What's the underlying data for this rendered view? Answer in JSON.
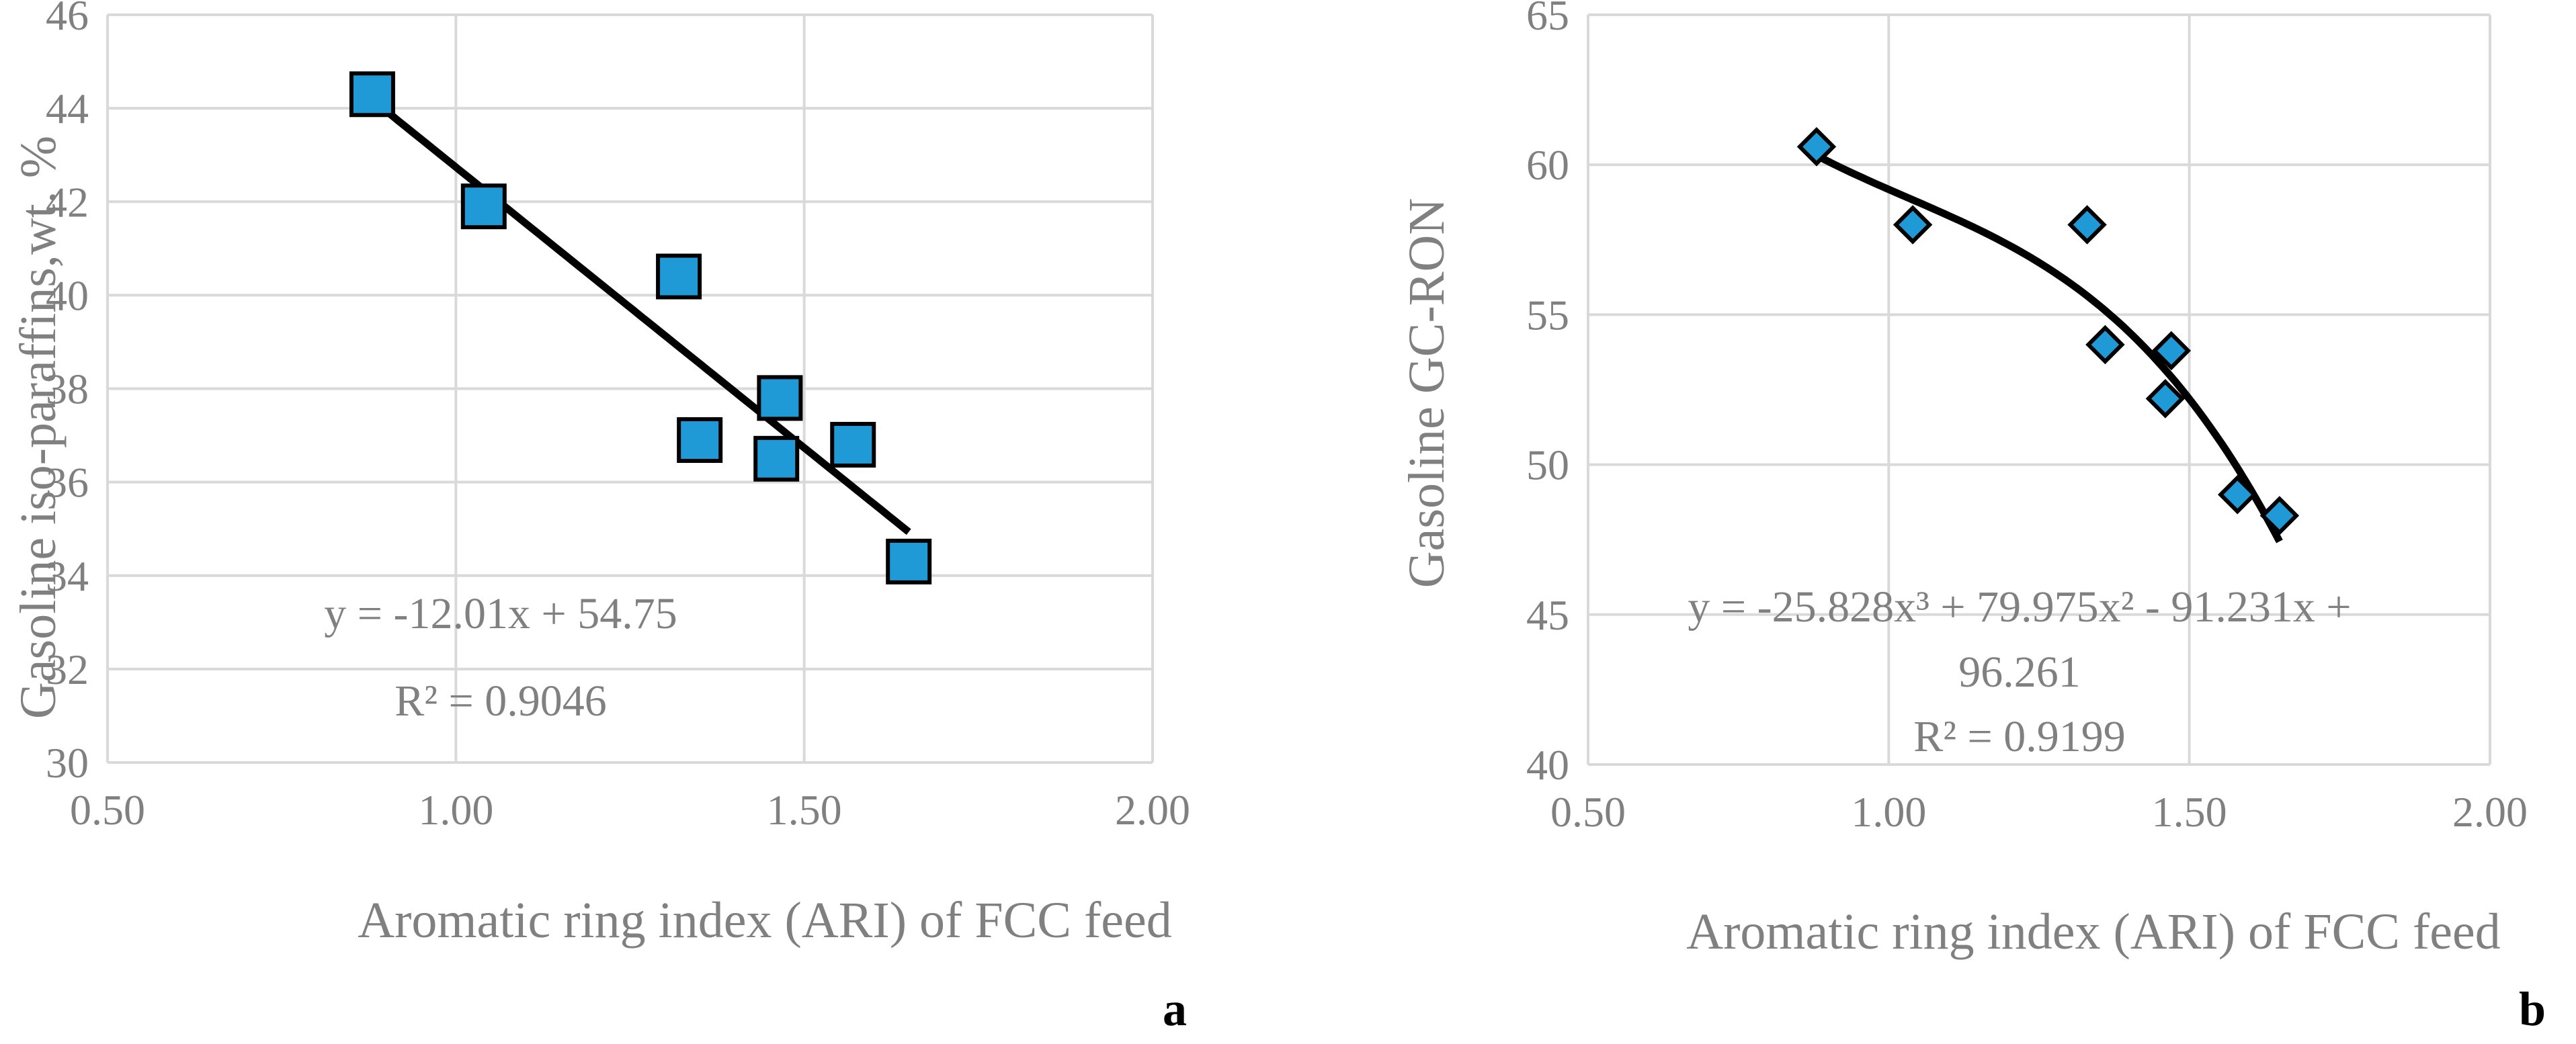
{
  "chart_data": [
    {
      "type": "scatter",
      "panel_label": "a",
      "title": "",
      "xlabel": "Aromatic ring index (ARI) of FCC feed",
      "ylabel": "Gasoline iso-paraffins,wt. %",
      "xlim": [
        0.5,
        2.0
      ],
      "ylim": [
        30,
        46
      ],
      "x_ticks": [
        0.5,
        1.0,
        1.5,
        2.0
      ],
      "x_tick_labels": [
        "0.50",
        "1.00",
        "1.50",
        "2.00"
      ],
      "y_ticks": [
        30,
        32,
        34,
        36,
        38,
        40,
        42,
        44,
        46
      ],
      "y_tick_labels": [
        "30",
        "32",
        "34",
        "36",
        "38",
        "40",
        "42",
        "44",
        "46"
      ],
      "grid": true,
      "marker": "square",
      "marker_color": "#1f9ad6",
      "series": [
        {
          "name": "data",
          "x": [
            0.88,
            1.04,
            1.32,
            1.35,
            1.46,
            1.465,
            1.57,
            1.65
          ],
          "y": [
            44.3,
            41.9,
            40.4,
            36.9,
            36.5,
            37.8,
            36.8,
            34.3
          ]
        }
      ],
      "trendline": {
        "type": "linear",
        "coefficients": [
          -12.01,
          54.75
        ],
        "x_range": [
          0.88,
          1.65
        ],
        "equation_label": "y = -12.01x + 54.75",
        "r2_label": "R² = 0.9046"
      }
    },
    {
      "type": "scatter",
      "panel_label": "b",
      "title": "",
      "xlabel": "Aromatic ring index (ARI) of FCC feed",
      "ylabel": "Gasoline GC-RON",
      "xlim": [
        0.5,
        2.0
      ],
      "ylim": [
        40,
        65
      ],
      "x_ticks": [
        0.5,
        1.0,
        1.5,
        2.0
      ],
      "x_tick_labels": [
        "0.50",
        "1.00",
        "1.50",
        "2.00"
      ],
      "y_ticks": [
        40,
        45,
        50,
        55,
        60,
        65
      ],
      "y_tick_labels": [
        "40",
        "45",
        "50",
        "55",
        "60",
        "65"
      ],
      "grid": true,
      "marker": "diamond",
      "marker_color": "#1f9ad6",
      "series": [
        {
          "name": "data",
          "x": [
            0.88,
            1.04,
            1.33,
            1.36,
            1.46,
            1.47,
            1.58,
            1.65
          ],
          "y": [
            60.6,
            58.0,
            58.0,
            54.0,
            52.2,
            53.8,
            49.0,
            48.3
          ]
        }
      ],
      "trendline": {
        "type": "polynomial",
        "order": 3,
        "coefficients": [
          -25.828,
          79.975,
          -91.231,
          96.261
        ],
        "x_range": [
          0.88,
          1.65
        ],
        "equation_line1": "y = -25.828x³ + 79.975x² - 91.231x +",
        "equation_line2": "96.261",
        "r2_label": "R² = 0.9199"
      }
    }
  ]
}
